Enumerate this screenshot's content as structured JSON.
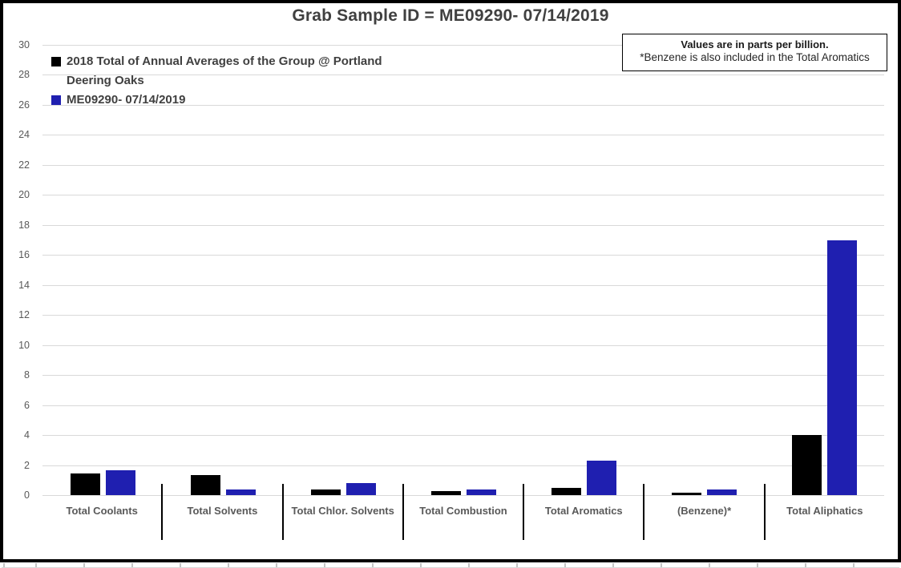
{
  "title": "Grab Sample ID = ME09290- 07/14/2019",
  "note": {
    "line1": "Values are in parts per billion.",
    "line2": "*Benzene is also included in the Total Aromatics"
  },
  "colors": {
    "series_2018": "#000000",
    "series_grab": "#1f1fb0",
    "gridline": "#d9d9d9",
    "axis_text": "#595959",
    "title_text": "#404040"
  },
  "chart_data": {
    "type": "bar",
    "title": "Grab Sample ID = ME09290- 07/14/2019",
    "categories": [
      "Total Coolants",
      "Total Solvents",
      "Total Chlor. Solvents",
      "Total Combustion",
      "Total Aromatics",
      "(Benzene)*",
      "Total Aliphatics"
    ],
    "series": [
      {
        "name": "2018 Total of Annual Averages of the Group @ Portland Deering Oaks",
        "color": "#000000",
        "values": [
          1.45,
          1.35,
          0.4,
          0.25,
          0.5,
          0.15,
          4
        ]
      },
      {
        "name": "ME09290- 07/14/2019",
        "color": "#1f1fb0",
        "values": [
          1.65,
          0.4,
          0.8,
          0.4,
          2.3,
          0.4,
          17
        ]
      }
    ],
    "xlabel": "",
    "ylabel": "",
    "ylim": [
      0,
      30
    ],
    "ytick_step": 2,
    "grid": true,
    "legend_position": "top-left",
    "units_note": "parts per billion"
  }
}
